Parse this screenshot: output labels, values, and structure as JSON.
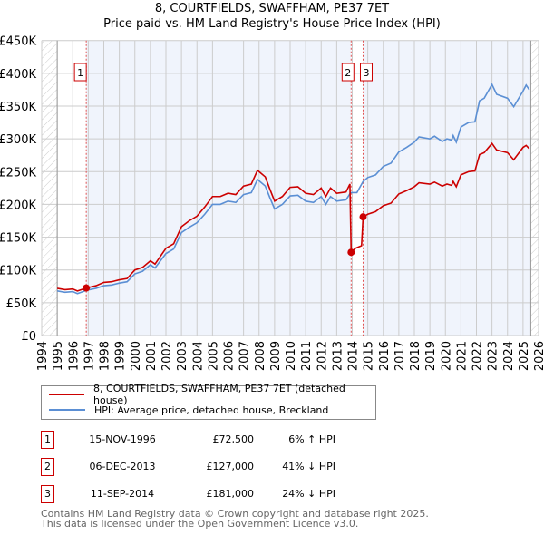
{
  "chart_data": {
    "type": "line",
    "title": "8, COURTFIELDS, SWAFFHAM, PE37 7ET",
    "subtitle": "Price paid vs. HM Land Registry's House Price Index (HPI)",
    "xlim": [
      1994,
      2026
    ],
    "ylim": [
      0,
      450000
    ],
    "x_ticks": [
      "1994",
      "1995",
      "1996",
      "1997",
      "1998",
      "1999",
      "2000",
      "2001",
      "2002",
      "2003",
      "2004",
      "2005",
      "2006",
      "2007",
      "2008",
      "2009",
      "2010",
      "2011",
      "2012",
      "2013",
      "2014",
      "2015",
      "2016",
      "2017",
      "2018",
      "2019",
      "2020",
      "2021",
      "2022",
      "2023",
      "2024",
      "2025",
      "2026"
    ],
    "y_ticks": [
      "£0",
      "£50K",
      "£100K",
      "£150K",
      "£200K",
      "£250K",
      "£300K",
      "£350K",
      "£400K",
      "£450K"
    ],
    "grid": true,
    "series": [
      {
        "name": "8, COURTFIELDS, SWAFFHAM, PE37 7ET (detached house)",
        "color": "#cc0000",
        "points": [
          [
            1995,
            72
          ],
          [
            1995.5,
            70
          ],
          [
            1996,
            71
          ],
          [
            1996.3,
            68
          ],
          [
            1996.87,
            72.5
          ],
          [
            1997.5,
            76
          ],
          [
            1998,
            81
          ],
          [
            1998.5,
            82
          ],
          [
            1999,
            85
          ],
          [
            1999.5,
            87
          ],
          [
            2000,
            100
          ],
          [
            2000.5,
            104
          ],
          [
            2001,
            114
          ],
          [
            2001.3,
            109
          ],
          [
            2002,
            133
          ],
          [
            2002.5,
            140
          ],
          [
            2003,
            166
          ],
          [
            2003.5,
            175
          ],
          [
            2004,
            182
          ],
          [
            2004.5,
            196
          ],
          [
            2005,
            212
          ],
          [
            2005.5,
            212
          ],
          [
            2006,
            217
          ],
          [
            2006.5,
            215
          ],
          [
            2007,
            228
          ],
          [
            2007.5,
            231
          ],
          [
            2007.9,
            252
          ],
          [
            2008.4,
            242
          ],
          [
            2008.7,
            223
          ],
          [
            2009,
            205
          ],
          [
            2009.5,
            212
          ],
          [
            2010,
            226
          ],
          [
            2010.5,
            227
          ],
          [
            2011,
            217
          ],
          [
            2011.5,
            215
          ],
          [
            2012,
            225
          ],
          [
            2012.3,
            212
          ],
          [
            2012.6,
            225
          ],
          [
            2013,
            217
          ],
          [
            2013.6,
            219
          ],
          [
            2013.85,
            231
          ],
          [
            2013.93,
            127
          ],
          [
            2014.2,
            133
          ],
          [
            2014.6,
            137
          ],
          [
            2014.7,
            181
          ],
          [
            2015,
            185
          ],
          [
            2015.5,
            189
          ],
          [
            2016,
            198
          ],
          [
            2016.5,
            202
          ],
          [
            2017,
            216
          ],
          [
            2017.5,
            221
          ],
          [
            2018,
            227
          ],
          [
            2018.3,
            233
          ],
          [
            2019,
            231
          ],
          [
            2019.3,
            234
          ],
          [
            2019.8,
            228
          ],
          [
            2020.1,
            231
          ],
          [
            2020.4,
            229
          ],
          [
            2020.5,
            235
          ],
          [
            2020.7,
            227
          ],
          [
            2021,
            245
          ],
          [
            2021.5,
            250
          ],
          [
            2021.9,
            251
          ],
          [
            2022.2,
            276
          ],
          [
            2022.5,
            279
          ],
          [
            2023,
            293
          ],
          [
            2023.3,
            283
          ],
          [
            2024,
            279
          ],
          [
            2024.4,
            268
          ],
          [
            2025,
            287
          ],
          [
            2025.2,
            290
          ],
          [
            2025.4,
            285
          ]
        ]
      },
      {
        "name": "HPI: Average price, detached house, Breckland",
        "color": "#5b8fd4",
        "points": [
          [
            1995,
            68
          ],
          [
            1995.5,
            66
          ],
          [
            1996,
            67
          ],
          [
            1996.3,
            64
          ],
          [
            1996.9,
            69
          ],
          [
            1997.5,
            72
          ],
          [
            1998,
            76
          ],
          [
            1998.5,
            77
          ],
          [
            1999,
            80
          ],
          [
            1999.5,
            82
          ],
          [
            2000,
            94
          ],
          [
            2000.5,
            98
          ],
          [
            2001,
            108
          ],
          [
            2001.3,
            103
          ],
          [
            2002,
            125
          ],
          [
            2002.5,
            132
          ],
          [
            2003,
            157
          ],
          [
            2003.5,
            165
          ],
          [
            2004,
            172
          ],
          [
            2004.5,
            185
          ],
          [
            2005,
            200
          ],
          [
            2005.5,
            200
          ],
          [
            2006,
            205
          ],
          [
            2006.5,
            203
          ],
          [
            2007,
            215
          ],
          [
            2007.5,
            218
          ],
          [
            2007.9,
            238
          ],
          [
            2008.4,
            228
          ],
          [
            2008.7,
            210
          ],
          [
            2009,
            193
          ],
          [
            2009.5,
            200
          ],
          [
            2010,
            213
          ],
          [
            2010.5,
            214
          ],
          [
            2011,
            205
          ],
          [
            2011.5,
            203
          ],
          [
            2012,
            212
          ],
          [
            2012.3,
            200
          ],
          [
            2012.6,
            212
          ],
          [
            2013,
            205
          ],
          [
            2013.6,
            207
          ],
          [
            2013.9,
            218
          ],
          [
            2014.3,
            218
          ],
          [
            2014.7,
            235
          ],
          [
            2015,
            241
          ],
          [
            2015.5,
            245
          ],
          [
            2016,
            258
          ],
          [
            2016.5,
            263
          ],
          [
            2017,
            280
          ],
          [
            2017.5,
            287
          ],
          [
            2018,
            295
          ],
          [
            2018.3,
            303
          ],
          [
            2019,
            300
          ],
          [
            2019.3,
            304
          ],
          [
            2019.8,
            296
          ],
          [
            2020.1,
            300
          ],
          [
            2020.4,
            298
          ],
          [
            2020.5,
            305
          ],
          [
            2020.7,
            295
          ],
          [
            2021,
            318
          ],
          [
            2021.5,
            325
          ],
          [
            2021.9,
            326
          ],
          [
            2022.2,
            358
          ],
          [
            2022.5,
            362
          ],
          [
            2023,
            383
          ],
          [
            2023.3,
            368
          ],
          [
            2024,
            362
          ],
          [
            2024.4,
            349
          ],
          [
            2025,
            373
          ],
          [
            2025.2,
            382
          ],
          [
            2025.4,
            375
          ]
        ]
      }
    ],
    "y_unit": "thousand GBP",
    "sales": [
      {
        "label": "1",
        "x": 1996.87,
        "y": 72.5
      },
      {
        "label": "2",
        "x": 2013.93,
        "y": 127
      },
      {
        "label": "3",
        "x": 2014.7,
        "y": 181
      }
    ],
    "legend_placement": "bottom"
  },
  "table": [
    {
      "num": "1",
      "date": "15-NOV-1996",
      "price": "£72,500",
      "hpi": "6% ↑ HPI"
    },
    {
      "num": "2",
      "date": "06-DEC-2013",
      "price": "£127,000",
      "hpi": "41% ↓ HPI"
    },
    {
      "num": "3",
      "date": "11-SEP-2014",
      "price": "£181,000",
      "hpi": "24% ↓ HPI"
    }
  ],
  "footer": [
    "Contains HM Land Registry data © Crown copyright and database right 2025.",
    "This data is licensed under the Open Government Licence v3.0."
  ]
}
